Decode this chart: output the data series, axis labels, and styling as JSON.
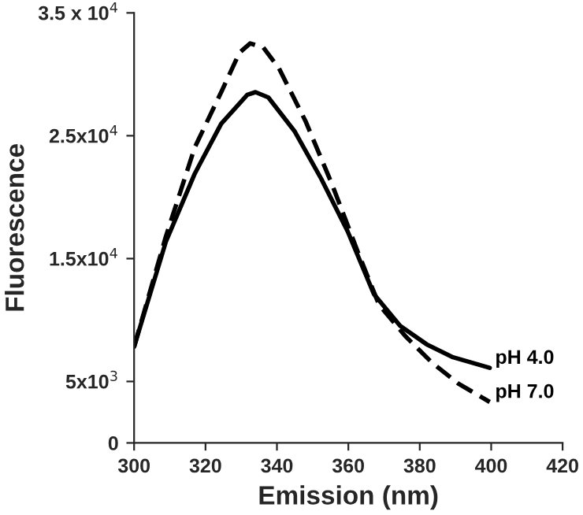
{
  "chart_data": {
    "type": "line",
    "xlabel": "Emission (nm)",
    "ylabel": "Fluorescence",
    "xlim": [
      300,
      420
    ],
    "xticks": [
      300,
      320,
      340,
      360,
      380,
      400,
      420
    ],
    "ylim": [
      0,
      35000
    ],
    "yticks": [
      {
        "value": 0,
        "label": "0"
      },
      {
        "value": 5000,
        "label": "5x10$^{3}$"
      },
      {
        "value": 15000,
        "label": "1.5x10$^{4}$"
      },
      {
        "value": 25000,
        "label": "2.5x10$^{4}$"
      },
      {
        "value": 35000,
        "label": "3.5 x 10$^{4}$"
      }
    ],
    "grid": false,
    "legend": false,
    "series": [
      {
        "name": "pH 4.0",
        "color": "#000000",
        "line_style": "solid",
        "x": [
          300,
          308.9,
          317,
          324.4,
          331.7,
          334,
          337.6,
          345,
          352.4,
          359.8,
          367.2,
          374.5,
          381.9,
          389.3,
          399.6
        ],
        "values": [
          7820,
          16370,
          21920,
          25980,
          28330,
          28550,
          28120,
          25340,
          21500,
          17220,
          12090,
          9530,
          8030,
          6970,
          6110
        ]
      },
      {
        "name": "pH 7.0",
        "color": "#000000",
        "line_style": "dashed",
        "x": [
          300,
          308.9,
          317,
          324.4,
          329.5,
          332.5,
          336.2,
          340.6,
          348,
          355.4,
          362.7,
          368.6,
          376,
          383.4,
          390.8,
          399.6
        ],
        "values": [
          7820,
          16800,
          24060,
          28550,
          31750,
          32520,
          32180,
          30470,
          26200,
          21070,
          15510,
          11240,
          8680,
          6540,
          4830,
          3330
        ]
      }
    ]
  }
}
